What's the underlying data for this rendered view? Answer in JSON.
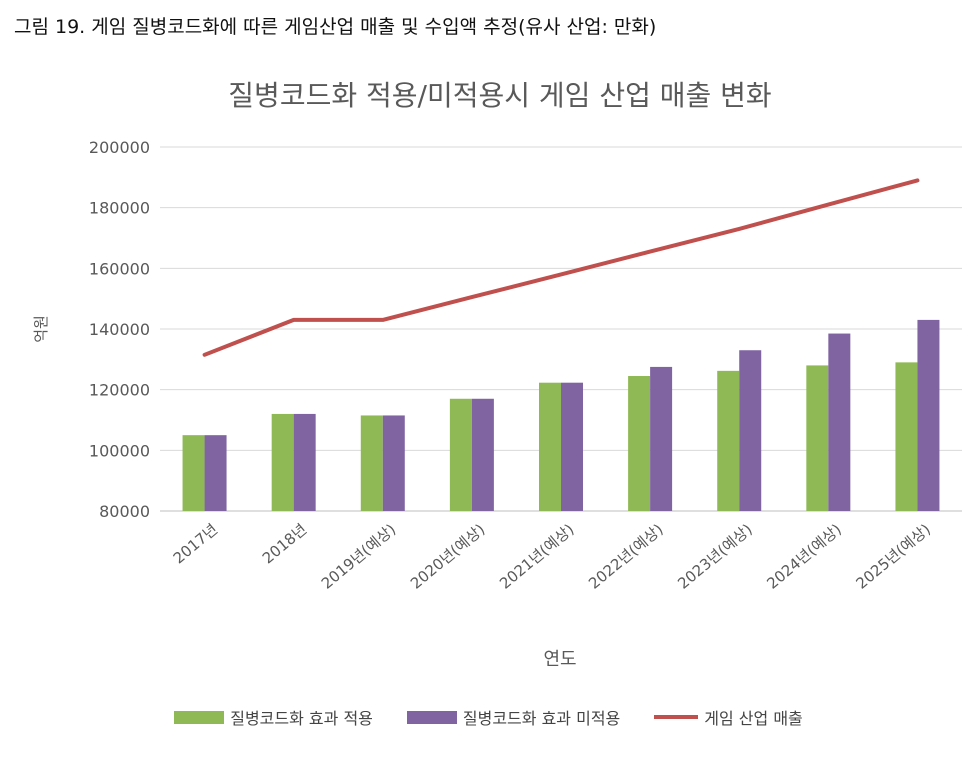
{
  "figure_caption": "그림 19. 게임 질병코드화에 따른 게임산업 매출 및 수입액 추정(유사 산업: 만화)",
  "chart_data": {
    "type": "bar",
    "title": "질병코드화 적용/미적용시 게임 산업 매출 변화",
    "xlabel": "연도",
    "ylabel": "억원",
    "ylim": [
      80000,
      200000
    ],
    "yticks": [
      80000,
      100000,
      120000,
      140000,
      160000,
      180000,
      200000
    ],
    "grid": true,
    "legend_position": "bottom",
    "categories": [
      "2017년",
      "2018년",
      "2019년(예상)",
      "2020년(예상)",
      "2021년(예상)",
      "2022년(예상)",
      "2023년(예상)",
      "2024년(예상)",
      "2025년(예상)"
    ],
    "series": [
      {
        "name": "질병코드화 효과 적용",
        "type": "bar",
        "color": "#8fb954",
        "values": [
          105000,
          112000,
          111500,
          117000,
          122300,
          124500,
          126200,
          128000,
          129000
        ]
      },
      {
        "name": "질병코드화 효과 미적용",
        "type": "bar",
        "color": "#8064a2",
        "values": [
          105000,
          112000,
          111500,
          117000,
          122300,
          127500,
          133000,
          138500,
          143000
        ]
      },
      {
        "name": "게임 산업 매출",
        "type": "line",
        "color": "#c0504d",
        "values": [
          131500,
          143000,
          143000,
          150500,
          158000,
          165500,
          173000,
          181000,
          189000
        ]
      }
    ]
  }
}
